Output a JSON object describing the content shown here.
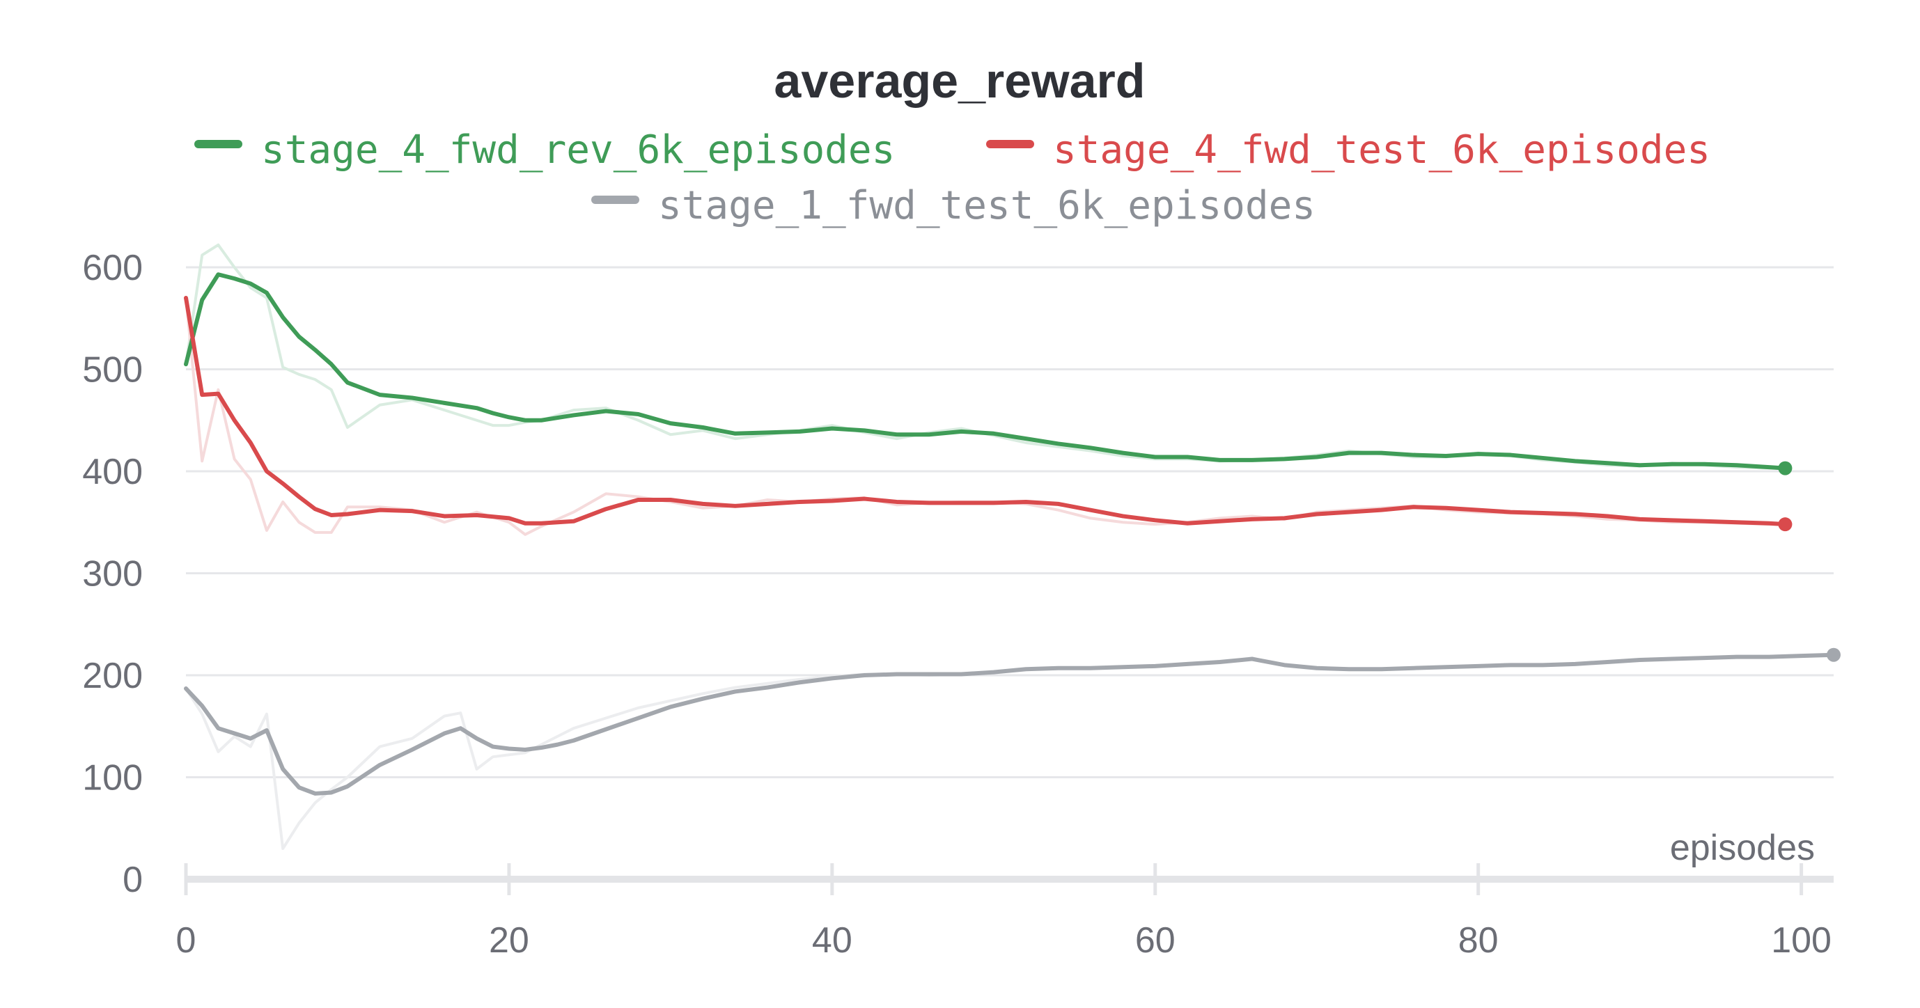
{
  "chart_data": {
    "type": "line",
    "title": "average_reward",
    "xlabel": "episodes",
    "ylabel": "",
    "xlim": [
      0,
      102
    ],
    "ylim": [
      0,
      600
    ],
    "x_ticks": [
      0,
      20,
      40,
      60,
      80,
      100
    ],
    "y_ticks": [
      0,
      100,
      200,
      300,
      400,
      500,
      600
    ],
    "grid": true,
    "legend_position": "top-center",
    "series": [
      {
        "name": "stage_4_fwd_rev_6k_episodes",
        "color": "#3f9c57",
        "raw_color": "#d9ece0",
        "x": [
          0,
          1,
          2,
          3,
          4,
          5,
          6,
          7,
          8,
          9,
          10,
          12,
          14,
          16,
          18,
          19,
          20,
          21,
          22,
          24,
          26,
          28,
          30,
          32,
          34,
          36,
          38,
          40,
          42,
          44,
          46,
          48,
          50,
          52,
          54,
          56,
          58,
          60,
          62,
          64,
          66,
          68,
          70,
          72,
          74,
          76,
          78,
          80,
          82,
          84,
          86,
          88,
          90,
          92,
          94,
          96,
          98,
          99
        ],
        "values": [
          505,
          568,
          593,
          589,
          584,
          575,
          551,
          532,
          519,
          505,
          487,
          475,
          472,
          467,
          462,
          457,
          453,
          450,
          450,
          455,
          459,
          456,
          447,
          443,
          437,
          438,
          439,
          442,
          440,
          436,
          436,
          439,
          437,
          432,
          427,
          423,
          418,
          414,
          414,
          411,
          411,
          412,
          414,
          418,
          418,
          416,
          415,
          417,
          416,
          413,
          410,
          408,
          406,
          407,
          407,
          406,
          404,
          403
        ],
        "raw_values": [
          505,
          612,
          622,
          600,
          580,
          570,
          502,
          495,
          490,
          480,
          443,
          465,
          470,
          460,
          450,
          445,
          445,
          448,
          450,
          460,
          462,
          450,
          436,
          440,
          432,
          436,
          440,
          445,
          438,
          432,
          438,
          442,
          435,
          428,
          424,
          420,
          415,
          412,
          412,
          410,
          411,
          413,
          416,
          420,
          417,
          414,
          414,
          418,
          415,
          411,
          409,
          406,
          405,
          408,
          406,
          404,
          403,
          403
        ]
      },
      {
        "name": "stage_4_fwd_test_6k_episodes",
        "color": "#d94a4c",
        "raw_color": "#f5dadb",
        "x": [
          0,
          1,
          2,
          3,
          4,
          5,
          6,
          7,
          8,
          9,
          10,
          12,
          14,
          16,
          18,
          20,
          21,
          22,
          24,
          26,
          28,
          30,
          32,
          34,
          36,
          38,
          40,
          42,
          44,
          46,
          48,
          50,
          52,
          54,
          56,
          58,
          60,
          62,
          64,
          66,
          68,
          70,
          72,
          74,
          76,
          78,
          80,
          82,
          84,
          86,
          88,
          90,
          92,
          94,
          96,
          98,
          99
        ],
        "values": [
          570,
          475,
          476,
          450,
          428,
          400,
          388,
          375,
          363,
          357,
          358,
          362,
          361,
          356,
          357,
          354,
          349,
          349,
          351,
          363,
          372,
          372,
          368,
          366,
          368,
          370,
          371,
          373,
          370,
          369,
          369,
          369,
          370,
          368,
          362,
          356,
          352,
          349,
          351,
          353,
          354,
          358,
          360,
          362,
          365,
          364,
          362,
          360,
          359,
          358,
          356,
          353,
          352,
          351,
          350,
          349,
          348
        ],
        "raw_values": [
          570,
          410,
          480,
          412,
          392,
          342,
          370,
          350,
          340,
          340,
          365,
          365,
          362,
          350,
          360,
          350,
          338,
          346,
          360,
          378,
          375,
          370,
          364,
          366,
          372,
          370,
          373,
          374,
          367,
          369,
          370,
          370,
          368,
          362,
          354,
          350,
          348,
          350,
          354,
          356,
          353,
          360,
          362,
          364,
          366,
          362,
          360,
          359,
          358,
          356,
          353,
          352,
          350,
          350,
          349,
          348,
          348
        ]
      },
      {
        "name": "stage_1_fwd_test_6k_episodes",
        "color": "#a3a7ad",
        "raw_color": "#ecedef",
        "x": [
          0,
          1,
          2,
          3,
          4,
          5,
          6,
          7,
          8,
          9,
          10,
          12,
          14,
          16,
          17,
          18,
          19,
          20,
          21,
          22,
          23,
          24,
          26,
          28,
          30,
          32,
          34,
          36,
          38,
          40,
          42,
          44,
          46,
          48,
          50,
          52,
          54,
          56,
          58,
          60,
          62,
          64,
          66,
          67,
          68,
          70,
          72,
          74,
          76,
          78,
          80,
          82,
          84,
          86,
          88,
          90,
          92,
          94,
          96,
          98,
          100,
          102
        ],
        "values": [
          187,
          170,
          148,
          143,
          138,
          146,
          108,
          90,
          84,
          85,
          91,
          112,
          127,
          143,
          148,
          138,
          130,
          128,
          127,
          129,
          132,
          136,
          147,
          158,
          169,
          177,
          184,
          188,
          193,
          197,
          200,
          201,
          201,
          201,
          203,
          206,
          207,
          207,
          208,
          209,
          211,
          213,
          216,
          213,
          210,
          207,
          206,
          206,
          207,
          208,
          209,
          210,
          210,
          211,
          213,
          215,
          216,
          217,
          218,
          218,
          219,
          220
        ],
        "raw_values": [
          187,
          162,
          125,
          140,
          130,
          162,
          30,
          55,
          75,
          88,
          100,
          130,
          138,
          160,
          163,
          108,
          120,
          122,
          124,
          132,
          140,
          148,
          158,
          168,
          175,
          182,
          188,
          192,
          196,
          199,
          201,
          201,
          200,
          201,
          203,
          206,
          207,
          207,
          208,
          209,
          211,
          213,
          217,
          213,
          210,
          207,
          206,
          206,
          207,
          208,
          209,
          210,
          210,
          211,
          213,
          215,
          216,
          217,
          218,
          218,
          219,
          220
        ]
      }
    ]
  }
}
